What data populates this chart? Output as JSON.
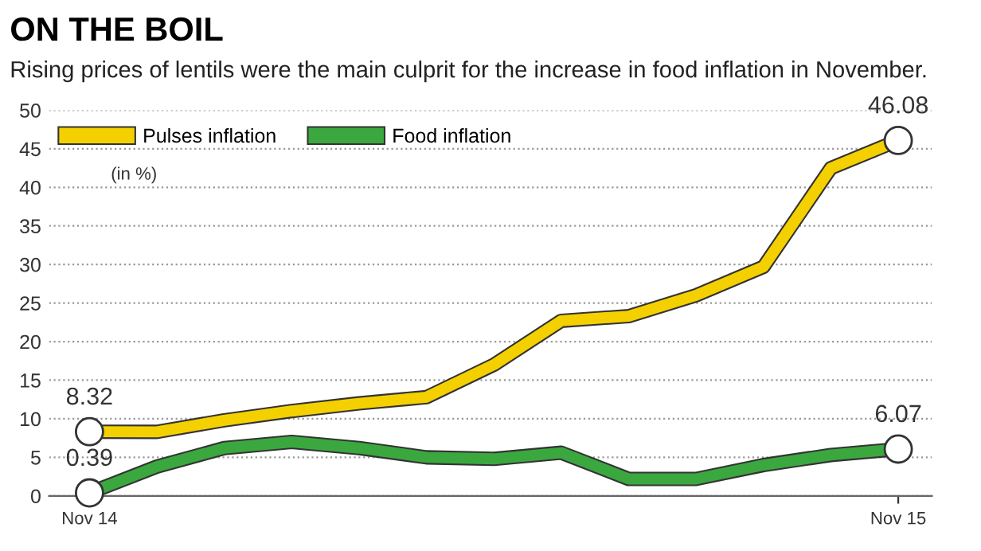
{
  "chart_data": {
    "type": "line",
    "title": "ON THE BOIL",
    "subtitle": "Rising prices of lentils were the main culprit for the increase in food inflation in November.",
    "categories": [
      "Nov 14",
      null,
      null,
      null,
      null,
      null,
      null,
      null,
      null,
      null,
      null,
      null,
      "Nov 15"
    ],
    "series": [
      {
        "name": "Pulses inflation",
        "color": "#f5d000",
        "values": [
          8.32,
          8.3,
          9.8,
          11,
          12,
          12.8,
          17,
          22.7,
          23.3,
          26,
          29.7,
          42.5,
          46.08
        ]
      },
      {
        "name": "Food inflation",
        "color": "#3aa83f",
        "values": [
          0.39,
          3.8,
          6.2,
          7,
          6.2,
          5,
          4.8,
          5.6,
          2.2,
          2.2,
          4,
          5.3,
          6.07
        ]
      }
    ],
    "annotations": [
      "(in %)",
      {
        "text": "8.32",
        "x": "Nov 14",
        "y": 8.32
      },
      {
        "text": "0.39",
        "x": "Nov 14",
        "y": 0.39
      },
      {
        "text": "46.08",
        "x": "Nov 15",
        "y": 46.08
      },
      {
        "text": "6.07",
        "x": "Nov 15",
        "y": 6.07
      }
    ],
    "ylim": [
      0,
      50
    ],
    "yticks": [
      0,
      5,
      10,
      15,
      20,
      25,
      30,
      35,
      40,
      45,
      50
    ],
    "grid": "y",
    "legend": "top left",
    "marker": "none",
    "line_style": "solid"
  }
}
